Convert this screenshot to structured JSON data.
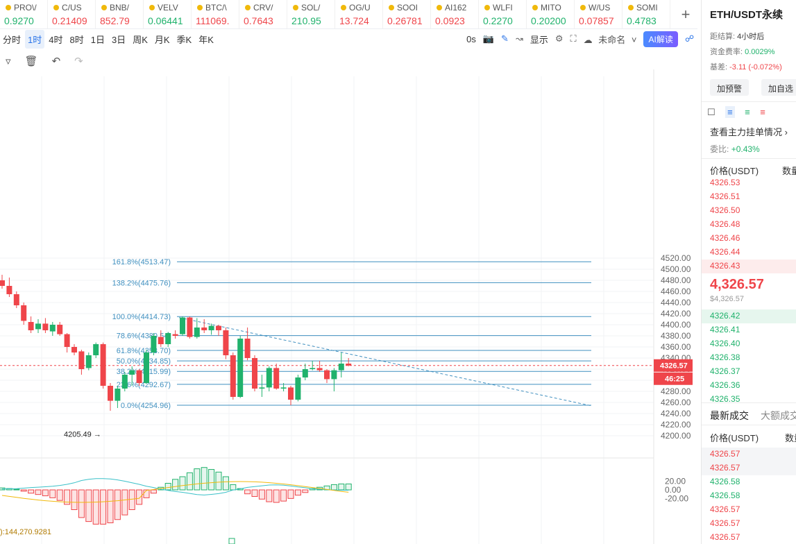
{
  "tickers": [
    {
      "name": "PRO\\/",
      "price": "0.9270",
      "dir": "up"
    },
    {
      "name": "C/US",
      "price": "0.21409",
      "dir": "dn"
    },
    {
      "name": "BNB/",
      "price": "852.79",
      "dir": "dn"
    },
    {
      "name": "VELV",
      "price": "0.06441",
      "dir": "up"
    },
    {
      "name": "BTC/\\",
      "price": "111069.",
      "dir": "dn"
    },
    {
      "name": "CRV/",
      "price": "0.7643",
      "dir": "dn"
    },
    {
      "name": "SOL/",
      "price": "210.95",
      "dir": "up"
    },
    {
      "name": "OG/U",
      "price": "13.724",
      "dir": "dn"
    },
    {
      "name": "SOOI",
      "price": "0.26781",
      "dir": "dn"
    },
    {
      "name": "AI162",
      "price": "0.0923",
      "dir": "dn"
    },
    {
      "name": "WLFI",
      "price": "0.2270",
      "dir": "up"
    },
    {
      "name": "MITO",
      "price": "0.20200",
      "dir": "up"
    },
    {
      "name": "W/US",
      "price": "0.07857",
      "dir": "dn"
    },
    {
      "name": "SOMI",
      "price": "0.4783",
      "dir": "up"
    }
  ],
  "timeframes": [
    "分时",
    "1时",
    "4时",
    "8时",
    "1日",
    "3日",
    "周K",
    "月K",
    "季K",
    "年K"
  ],
  "active_timeframe": "1时",
  "toolbar_right": {
    "countdown": "0s",
    "display": "显示",
    "layout_name": "未命名",
    "ai_label": "AI解读"
  },
  "panel": {
    "symbol": "ETH/USDT永续",
    "settle_label": "距结算:",
    "settle_value": "4小时后",
    "funding_label": "资金费率:",
    "funding_value": "0.0029%",
    "basis_label": "基差:",
    "basis_value": "-3.11 (-0.072%)",
    "alert_btn": "加预警",
    "watch_btn": "加自选",
    "orderbook_link": "查看主力挂单情况",
    "ratio_label": "委比:",
    "ratio_value": "+0.43%",
    "price_header": "价格(USDT)",
    "qty_header": "数量",
    "asks": [
      "4326.53",
      "4326.51",
      "4326.50",
      "4326.48",
      "4326.46",
      "4326.44",
      "4326.43"
    ],
    "last_price": "4,326.57",
    "last_price_usd": "$4,326.57",
    "bids": [
      "4326.42",
      "4326.41",
      "4326.40",
      "4326.38",
      "4326.37",
      "4326.36",
      "4326.35"
    ],
    "trades_tab": "最新成交",
    "large_trades_tab": "大额成交",
    "trades_header": "价格(USDT)",
    "trades_qty_header": "数量",
    "trades": [
      {
        "p": "4326.57",
        "d": "dn"
      },
      {
        "p": "4326.57",
        "d": "dn"
      },
      {
        "p": "4326.58",
        "d": "up"
      },
      {
        "p": "4326.58",
        "d": "up"
      },
      {
        "p": "4326.57",
        "d": "dn"
      },
      {
        "p": "4326.57",
        "d": "dn"
      },
      {
        "p": "4326.57",
        "d": "dn"
      }
    ]
  },
  "chart_data": {
    "type": "candlestick",
    "y_ticks": [
      "4520.00",
      "4500.00",
      "4480.00",
      "4460.00",
      "4440.00",
      "4420.00",
      "4400.00",
      "4380.00",
      "4360.00",
      "4340.00",
      "4320.00",
      "4300.00",
      "4280.00",
      "4260.00",
      "4240.00",
      "4220.00",
      "4200.00"
    ],
    "ylim": [
      4200,
      4520
    ],
    "fib_levels": [
      {
        "label": "161.8%(4513.47)",
        "value": 4513.47
      },
      {
        "label": "138.2%(4475.76)",
        "value": 4475.76
      },
      {
        "label": "100.0%(4414.73)",
        "value": 4414.73
      },
      {
        "label": "78.6%(4380.54)",
        "value": 4380.54
      },
      {
        "label": "61.8%(4353.70)",
        "value": 4353.7
      },
      {
        "label": "50.0%(4334.85)",
        "value": 4334.85
      },
      {
        "label": "38.2%(4315.99)",
        "value": 4315.99
      },
      {
        "label": "23.6%(4292.67)",
        "value": 4292.67
      },
      {
        "label": "0.0%(4254.96)",
        "value": 4254.96
      }
    ],
    "current_price_label": "4326.57",
    "countdown_label": "46:25",
    "current_price": 4326.57,
    "low_label": "4205.49",
    "low": 4205.49,
    "trendline": {
      "from": 4413,
      "to": 4254
    },
    "macd_ticks": [
      "20.00",
      "0.00",
      "-20.00"
    ],
    "volume_label": "):144,270.9281",
    "candles": [
      [
        4480,
        4470,
        4490,
        4465
      ],
      [
        4470,
        4455,
        4485,
        4450
      ],
      [
        4455,
        4435,
        4460,
        4430
      ],
      [
        4435,
        4407,
        4440,
        4400
      ],
      [
        4405,
        4390,
        4415,
        4385
      ],
      [
        4392,
        4402,
        4410,
        4385
      ],
      [
        4402,
        4390,
        4412,
        4385
      ],
      [
        4388,
        4400,
        4405,
        4380
      ],
      [
        4400,
        4383,
        4405,
        4380
      ],
      [
        4383,
        4360,
        4385,
        4350
      ],
      [
        4360,
        4350,
        4365,
        4345
      ],
      [
        4352,
        4320,
        4355,
        4310
      ],
      [
        4322,
        4345,
        4350,
        4318
      ],
      [
        4345,
        4365,
        4368,
        4340
      ],
      [
        4365,
        4290,
        4368,
        4285
      ],
      [
        4290,
        4263,
        4295,
        4245
      ],
      [
        4263,
        4285,
        4290,
        4250
      ],
      [
        4285,
        4310,
        4315,
        4280
      ],
      [
        4310,
        4318,
        4325,
        4290
      ],
      [
        4318,
        4295,
        4320,
        4290
      ],
      [
        4295,
        4350,
        4355,
        4293
      ],
      [
        4350,
        4380,
        4385,
        4345
      ],
      [
        4378,
        4365,
        4390,
        4360
      ],
      [
        4365,
        4385,
        4387,
        4360
      ],
      [
        4383,
        4380,
        4390,
        4375
      ],
      [
        4383,
        4413,
        4415,
        4380
      ],
      [
        4413,
        4378,
        4415,
        4375
      ],
      [
        4378,
        4395,
        4412,
        4375
      ],
      [
        4395,
        4390,
        4410,
        4385
      ],
      [
        4390,
        4398,
        4402,
        4382
      ],
      [
        4398,
        4390,
        4400,
        4380
      ],
      [
        4390,
        4345,
        4395,
        4338
      ],
      [
        4345,
        4270,
        4350,
        4265
      ],
      [
        4270,
        4375,
        4380,
        4268
      ],
      [
        4375,
        4340,
        4395,
        4336
      ],
      [
        4340,
        4285,
        4345,
        4280
      ],
      [
        4285,
        4287,
        4310,
        4270
      ],
      [
        4287,
        4322,
        4325,
        4280
      ],
      [
        4322,
        4285,
        4330,
        4283
      ],
      [
        4285,
        4287,
        4295,
        4280
      ],
      [
        4287,
        4265,
        4290,
        4255
      ],
      [
        4265,
        4305,
        4310,
        4262
      ],
      [
        4305,
        4320,
        4330,
        4300
      ],
      [
        4320,
        4322,
        4335,
        4318
      ],
      [
        4322,
        4318,
        4335,
        4315
      ],
      [
        4318,
        4302,
        4320,
        4295
      ],
      [
        4302,
        4318,
        4322,
        4280
      ],
      [
        4318,
        4330,
        4350,
        4305
      ],
      [
        4330,
        4326.57,
        4340,
        4325
      ]
    ]
  }
}
